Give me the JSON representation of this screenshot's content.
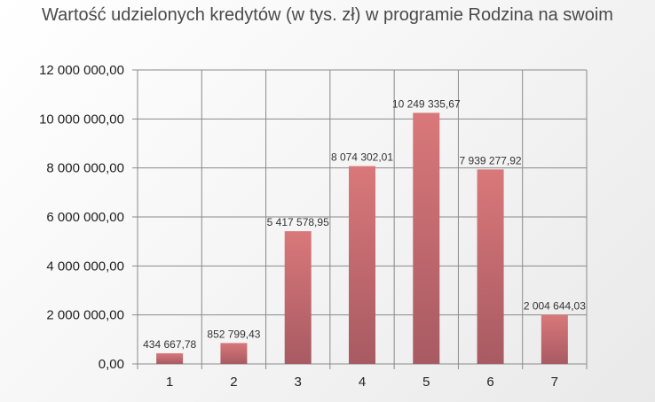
{
  "chart_data": {
    "type": "bar",
    "title": "Wartość udzielonych kredytów (w tys. zł) w programie Rodzina na swoim",
    "xlabel": "",
    "ylabel": "",
    "categories": [
      "1",
      "2",
      "3",
      "4",
      "5",
      "6",
      "7"
    ],
    "values": [
      434667.78,
      852799.43,
      5417578.95,
      8074302.01,
      10249335.67,
      7939277.92,
      2004644.03
    ],
    "data_labels": [
      "434 667,78",
      "852 799,43",
      "5 417 578,95",
      "8 074 302,01",
      "10 249 335,67",
      "7 939 277,92",
      "2 004 644,03"
    ],
    "ylim": [
      0,
      12000000
    ],
    "y_ticks": [
      0,
      2000000,
      4000000,
      6000000,
      8000000,
      10000000,
      12000000
    ],
    "y_tick_labels": [
      "0,00",
      "2 000 000,00",
      "4 000 000,00",
      "6 000 000,00",
      "8 000 000,00",
      "10 000 000,00",
      "12 000 000,00"
    ],
    "grid": true,
    "legend": "none",
    "colors": {
      "bar_top": "#d9787a",
      "bar_bottom": "#a85a62",
      "grid": "#8a8a8a"
    }
  }
}
